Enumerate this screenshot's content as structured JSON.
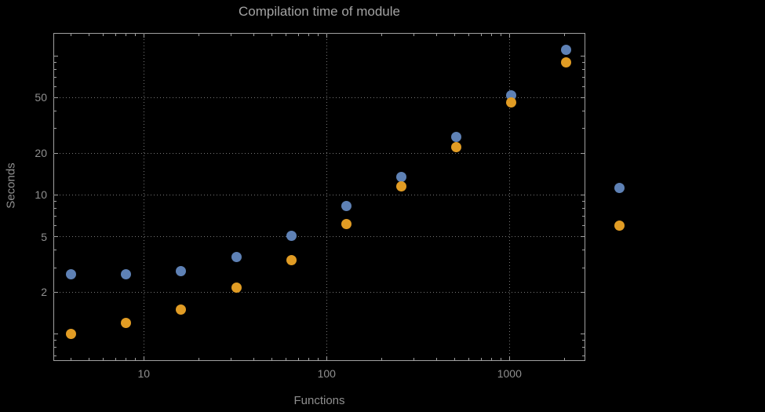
{
  "chart_data": {
    "type": "scatter",
    "title": "Compilation time of module",
    "xlabel": "Functions",
    "ylabel": "Seconds",
    "x_scale": "log",
    "y_scale": "log",
    "xlim": [
      3.2,
      2600
    ],
    "ylim": [
      0.64,
      146
    ],
    "grid": "dotted",
    "x_ticks": [
      {
        "value": 10,
        "label": "10"
      },
      {
        "value": 100,
        "label": "100"
      },
      {
        "value": 1000,
        "label": "1000"
      }
    ],
    "y_ticks": [
      {
        "value": 2,
        "label": "2"
      },
      {
        "value": 5,
        "label": "5"
      },
      {
        "value": 10,
        "label": "10"
      },
      {
        "value": 20,
        "label": "20"
      },
      {
        "value": 50,
        "label": "50"
      }
    ],
    "x": [
      4,
      8,
      16,
      32,
      64,
      128,
      256,
      512,
      1024,
      2048
    ],
    "series": [
      {
        "color": "#5e81b5",
        "values": [
          2.7,
          2.7,
          2.85,
          3.6,
          5.1,
          8.3,
          13.5,
          26,
          52,
          110
        ]
      },
      {
        "color": "#e19c24",
        "values": [
          1.0,
          1.2,
          1.5,
          2.15,
          3.4,
          6.2,
          11.5,
          22,
          46,
          90
        ]
      }
    ],
    "marker_size": 13,
    "legend": {
      "position": "outside-right",
      "markers": [
        {
          "color": "#5e81b5"
        },
        {
          "color": "#e19c24"
        }
      ]
    }
  },
  "colors": {
    "background": "#000000",
    "frame": "#a0a0a0",
    "grid": "#757575",
    "title_text": "#a3a3a3",
    "axis_text": "#8f8f8f",
    "tick_text": "#909090",
    "series_blue": "#5e81b5",
    "series_orange": "#e19c24"
  }
}
